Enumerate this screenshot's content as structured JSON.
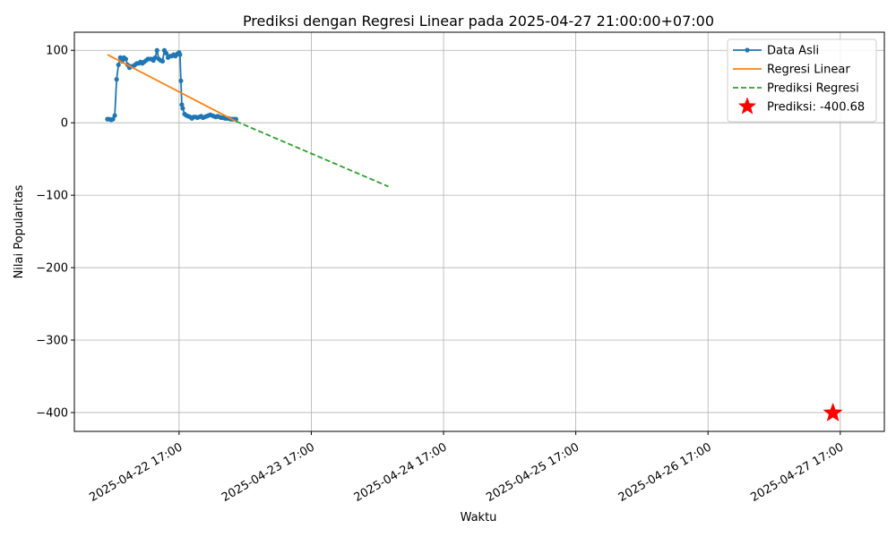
{
  "chart_data": {
    "type": "line",
    "title": "Prediksi dengan Regresi Linear pada 2025-04-27 21:00:00+07:00",
    "xlabel": "Waktu",
    "ylabel": "Nilai Popularitas",
    "x_type": "datetime",
    "xlim": [
      "2025-04-21 22:00",
      "2025-04-28 01:00"
    ],
    "ylim": [
      -426,
      125
    ],
    "x_ticks": [
      {
        "value": "2025-04-22 17:00",
        "label": "2025-04-22 17:00"
      },
      {
        "value": "2025-04-23 17:00",
        "label": "2025-04-23 17:00"
      },
      {
        "value": "2025-04-24 17:00",
        "label": "2025-04-24 17:00"
      },
      {
        "value": "2025-04-25 17:00",
        "label": "2025-04-25 17:00"
      },
      {
        "value": "2025-04-26 17:00",
        "label": "2025-04-26 17:00"
      },
      {
        "value": "2025-04-27 17:00",
        "label": "2025-04-27 17:00"
      }
    ],
    "y_ticks": [
      {
        "value": 100,
        "label": "100"
      },
      {
        "value": 0,
        "label": "0"
      },
      {
        "value": -100,
        "label": "−100"
      },
      {
        "value": -200,
        "label": "−200"
      },
      {
        "value": -300,
        "label": "−300"
      },
      {
        "value": -400,
        "label": "−400"
      }
    ],
    "grid": true,
    "legend_position": "top-right",
    "series": [
      {
        "name": "Data Asli",
        "kind": "line-marker",
        "color": "#1f77b4",
        "points": [
          [
            "2025-04-22 04:00",
            5
          ],
          [
            "2025-04-22 04:20",
            5
          ],
          [
            "2025-04-22 04:40",
            4
          ],
          [
            "2025-04-22 05:00",
            5
          ],
          [
            "2025-04-22 05:20",
            10
          ],
          [
            "2025-04-22 05:40",
            60
          ],
          [
            "2025-04-22 06:00",
            80
          ],
          [
            "2025-04-22 06:20",
            90
          ],
          [
            "2025-04-22 06:40",
            85
          ],
          [
            "2025-04-22 07:00",
            90
          ],
          [
            "2025-04-22 07:20",
            88
          ],
          [
            "2025-04-22 07:40",
            80
          ],
          [
            "2025-04-22 08:00",
            76
          ],
          [
            "2025-04-22 08:20",
            78
          ],
          [
            "2025-04-22 08:40",
            78
          ],
          [
            "2025-04-22 09:00",
            80
          ],
          [
            "2025-04-22 09:20",
            82
          ],
          [
            "2025-04-22 09:40",
            82
          ],
          [
            "2025-04-22 10:00",
            84
          ],
          [
            "2025-04-22 10:20",
            82
          ],
          [
            "2025-04-22 10:40",
            84
          ],
          [
            "2025-04-22 11:00",
            86
          ],
          [
            "2025-04-22 11:20",
            88
          ],
          [
            "2025-04-22 11:40",
            88
          ],
          [
            "2025-04-22 12:00",
            88
          ],
          [
            "2025-04-22 12:20",
            86
          ],
          [
            "2025-04-22 12:40",
            90
          ],
          [
            "2025-04-22 13:00",
            100
          ],
          [
            "2025-04-22 13:20",
            88
          ],
          [
            "2025-04-22 13:40",
            86
          ],
          [
            "2025-04-22 14:00",
            85
          ],
          [
            "2025-04-22 14:20",
            100
          ],
          [
            "2025-04-22 14:40",
            96
          ],
          [
            "2025-04-22 15:00",
            90
          ],
          [
            "2025-04-22 15:20",
            92
          ],
          [
            "2025-04-22 15:40",
            92
          ],
          [
            "2025-04-22 16:00",
            94
          ],
          [
            "2025-04-22 16:20",
            92
          ],
          [
            "2025-04-22 16:40",
            95
          ],
          [
            "2025-04-22 17:00",
            97
          ],
          [
            "2025-04-22 17:10",
            94
          ],
          [
            "2025-04-22 17:20",
            58
          ],
          [
            "2025-04-22 17:30",
            25
          ],
          [
            "2025-04-22 17:40",
            20
          ],
          [
            "2025-04-22 18:00",
            12
          ],
          [
            "2025-04-22 18:20",
            10
          ],
          [
            "2025-04-22 18:40",
            9
          ],
          [
            "2025-04-22 19:00",
            8
          ],
          [
            "2025-04-22 19:20",
            6
          ],
          [
            "2025-04-22 19:40",
            8
          ],
          [
            "2025-04-22 20:00",
            8
          ],
          [
            "2025-04-22 20:20",
            7
          ],
          [
            "2025-04-22 20:40",
            8
          ],
          [
            "2025-04-22 21:00",
            9
          ],
          [
            "2025-04-22 21:20",
            7
          ],
          [
            "2025-04-22 21:40",
            8
          ],
          [
            "2025-04-22 22:00",
            9
          ],
          [
            "2025-04-22 22:20",
            10
          ],
          [
            "2025-04-22 22:40",
            11
          ],
          [
            "2025-04-22 23:00",
            10
          ],
          [
            "2025-04-22 23:20",
            9
          ],
          [
            "2025-04-22 23:40",
            8
          ],
          [
            "2025-04-23 00:00",
            9
          ],
          [
            "2025-04-23 00:20",
            8
          ],
          [
            "2025-04-23 00:40",
            7
          ],
          [
            "2025-04-23 01:00",
            7
          ],
          [
            "2025-04-23 01:20",
            6
          ],
          [
            "2025-04-23 01:40",
            6
          ],
          [
            "2025-04-23 02:00",
            6
          ],
          [
            "2025-04-23 02:20",
            5
          ],
          [
            "2025-04-23 02:40",
            5
          ],
          [
            "2025-04-23 03:00",
            5
          ],
          [
            "2025-04-23 03:20",
            5
          ]
        ]
      },
      {
        "name": "Regresi Linear",
        "kind": "line",
        "color": "#ff7f0e",
        "points": [
          [
            "2025-04-22 04:00",
            94
          ],
          [
            "2025-04-23 03:20",
            2
          ]
        ]
      },
      {
        "name": "Prediksi Regresi",
        "kind": "dashed-line",
        "color": "#2ca02c",
        "points": [
          [
            "2025-04-23 03:20",
            2
          ],
          [
            "2025-04-24 07:00",
            -88
          ]
        ]
      },
      {
        "name": "Prediksi: -400.68",
        "kind": "star",
        "color": "#ff0000",
        "points": [
          [
            "2025-04-27 15:40",
            -400.68
          ]
        ]
      }
    ]
  }
}
